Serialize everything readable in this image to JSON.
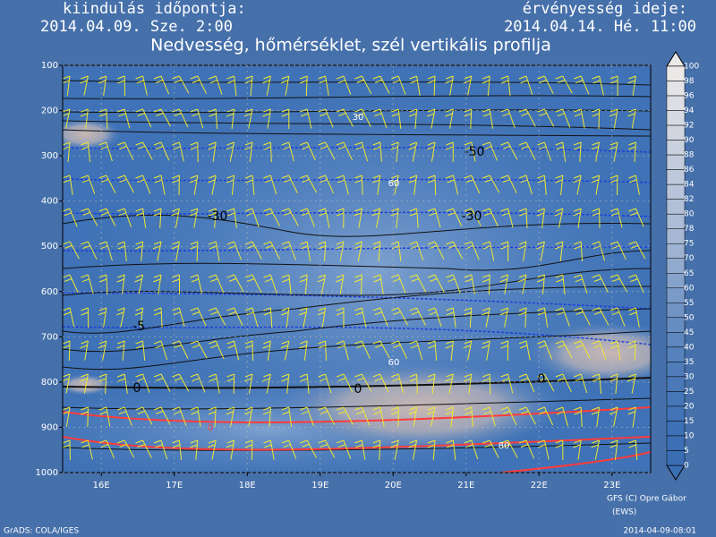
{
  "header": {
    "start_label": "kiindulás időpontja:",
    "start_time": "2014.04.09. Sze. 2:00",
    "valid_label": "érvényesség ideje:",
    "valid_time": "2014.04.14. Hé. 11:00"
  },
  "chart_data": {
    "type": "contour",
    "title": "Nedvesség, hőmérséklet, szél vertikális profilja",
    "xlim": [
      15.47,
      23.53
    ],
    "xticks": [
      {
        "value": 16,
        "label": "16E"
      },
      {
        "value": 17,
        "label": "17E"
      },
      {
        "value": 18,
        "label": "18E"
      },
      {
        "value": 19,
        "label": "19E"
      },
      {
        "value": 20,
        "label": "20E"
      },
      {
        "value": 21,
        "label": "21E"
      },
      {
        "value": 22,
        "label": "22E"
      },
      {
        "value": 23,
        "label": "23E"
      }
    ],
    "ylim": [
      100,
      1000
    ],
    "yticks": [
      100,
      200,
      300,
      400,
      500,
      600,
      700,
      800,
      900,
      1000
    ],
    "grid": true,
    "contour_labels": [
      30,
      -50,
      60,
      -30,
      -30,
      -5,
      60,
      0,
      0,
      0,
      80,
      0
    ],
    "colorbar_ticks": [
      100,
      98,
      96,
      94,
      92,
      90,
      88,
      86,
      84,
      82,
      80,
      78,
      75,
      70,
      65,
      60,
      55,
      50,
      45,
      40,
      35,
      30,
      25,
      20,
      15,
      10,
      5,
      0
    ]
  },
  "footer": {
    "left": "GrADS: COLA/IGES",
    "credit": "GFS (C) Opre Gábor",
    "credit2": "(EWS)",
    "timestamp": "2014-04-09-08:01"
  }
}
